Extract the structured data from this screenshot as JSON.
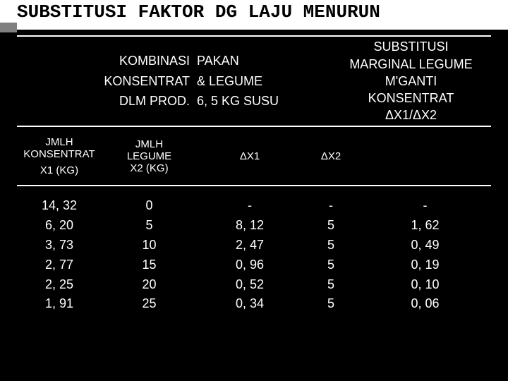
{
  "title": "SUBSTITUSI FAKTOR DG LAJU MENURUN",
  "top": {
    "kombinasi_l1": "KOMBINASI",
    "kombinasi_l2": "KONSENTRAT",
    "kombinasi_l3": "DLM  PROD.",
    "pakan_l1": "PAKAN",
    "pakan_l2": "& LEGUME",
    "pakan_l3": "6, 5 KG SUSU",
    "marginal_l1": "SUBSTITUSI",
    "marginal_l2": "MARGINAL LEGUME",
    "marginal_l3": "M'GANTI",
    "marginal_l4": "KONSENTRAT",
    "marginal_l5": "ΔX1/ΔX2"
  },
  "headers": {
    "c1_l1": "JMLH",
    "c1_l2": "KONSENTRAT",
    "c1_l3": "X1 (KG)",
    "c2_l1": "JMLH",
    "c2_l2": "LEGUME",
    "c2_l3": "X2 (KG)",
    "c3": "ΔX1",
    "c4": "ΔX2"
  },
  "data": {
    "col1": [
      "14, 32",
      "6, 20",
      "3, 73",
      "2, 77",
      "2, 25",
      "1, 91"
    ],
    "col2": [
      "0",
      "5",
      "10",
      "15",
      "20",
      "25"
    ],
    "col3": [
      "-",
      "8, 12",
      "2, 47",
      "0, 96",
      "0, 52",
      "0, 34"
    ],
    "col4": [
      "-",
      "5",
      "5",
      "5",
      "5",
      "5"
    ],
    "col5": [
      "-",
      "1, 62",
      "0, 49",
      "0, 19",
      "0, 10",
      "0, 06"
    ]
  },
  "colors": {
    "bg": "#000000",
    "text": "#ffffff",
    "border": "#ffffff"
  }
}
